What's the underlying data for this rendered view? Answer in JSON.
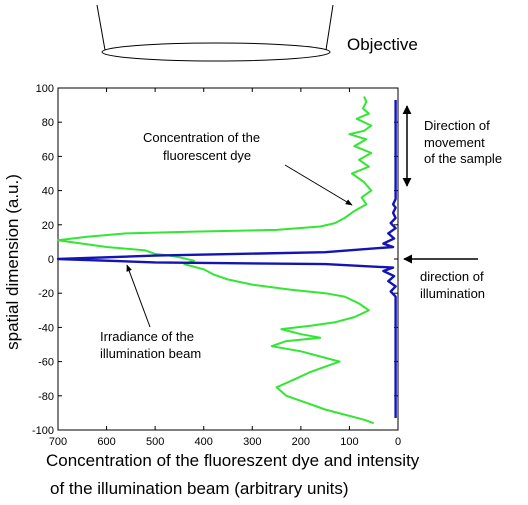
{
  "chart_data": {
    "type": "line",
    "xlabel_line1": "Concentration of the fluoreszent dye and intensity",
    "xlabel_line2": "of the illumination beam (arbitrary units)",
    "ylabel": "spatial dimension (a.u.)",
    "xlim": [
      700,
      0
    ],
    "ylim": [
      -100,
      100
    ],
    "x_ticks": [
      700,
      600,
      500,
      400,
      300,
      200,
      100,
      0
    ],
    "y_ticks": [
      100,
      80,
      60,
      40,
      20,
      0,
      -20,
      -40,
      -60,
      -80,
      -100
    ],
    "grid": false,
    "series": [
      {
        "color": "#33e633",
        "points": [
          [
            70,
            95
          ],
          [
            65,
            92
          ],
          [
            72,
            88
          ],
          [
            60,
            85
          ],
          [
            85,
            82
          ],
          [
            55,
            78
          ],
          [
            70,
            75
          ],
          [
            100,
            73
          ],
          [
            65,
            70
          ],
          [
            90,
            66
          ],
          [
            55,
            62
          ],
          [
            80,
            58
          ],
          [
            60,
            54
          ],
          [
            95,
            50
          ],
          [
            70,
            45
          ],
          [
            55,
            40
          ],
          [
            75,
            36
          ],
          [
            65,
            32
          ],
          [
            90,
            28
          ],
          [
            110,
            24
          ],
          [
            130,
            21
          ],
          [
            160,
            19
          ],
          [
            250,
            17
          ],
          [
            420,
            16
          ],
          [
            560,
            15
          ],
          [
            640,
            13
          ],
          [
            700,
            11
          ],
          [
            650,
            9
          ],
          [
            600,
            7
          ],
          [
            520,
            5
          ],
          [
            500,
            3
          ],
          [
            470,
            2
          ],
          [
            450,
            1
          ],
          [
            420,
            -1
          ],
          [
            440,
            -3
          ],
          [
            400,
            -6
          ],
          [
            380,
            -9
          ],
          [
            350,
            -12
          ],
          [
            300,
            -15
          ],
          [
            220,
            -18
          ],
          [
            150,
            -20
          ],
          [
            110,
            -22
          ],
          [
            80,
            -26
          ],
          [
            60,
            -30
          ],
          [
            90,
            -34
          ],
          [
            130,
            -37
          ],
          [
            180,
            -39
          ],
          [
            240,
            -41
          ],
          [
            200,
            -44
          ],
          [
            160,
            -46
          ],
          [
            230,
            -48
          ],
          [
            260,
            -51
          ],
          [
            200,
            -54
          ],
          [
            160,
            -57
          ],
          [
            120,
            -60
          ],
          [
            150,
            -63
          ],
          [
            180,
            -66
          ],
          [
            210,
            -70
          ],
          [
            250,
            -75
          ],
          [
            230,
            -80
          ],
          [
            190,
            -84
          ],
          [
            150,
            -88
          ],
          [
            110,
            -91
          ],
          [
            70,
            -94
          ],
          [
            50,
            -96
          ]
        ]
      },
      {
        "color": "#1414b4",
        "points": [
          [
            5,
            93
          ],
          [
            5,
            80
          ],
          [
            5,
            60
          ],
          [
            5,
            40
          ],
          [
            5,
            35
          ],
          [
            10,
            32
          ],
          [
            5,
            30
          ],
          [
            10,
            27
          ],
          [
            5,
            24
          ],
          [
            15,
            21
          ],
          [
            5,
            18
          ],
          [
            20,
            15
          ],
          [
            8,
            12
          ],
          [
            30,
            9
          ],
          [
            10,
            7
          ],
          [
            150,
            4
          ],
          [
            500,
            2
          ],
          [
            700,
            0
          ],
          [
            500,
            -2
          ],
          [
            150,
            -3
          ],
          [
            10,
            -5
          ],
          [
            30,
            -7
          ],
          [
            8,
            -10
          ],
          [
            20,
            -13
          ],
          [
            5,
            -16
          ],
          [
            15,
            -19
          ],
          [
            5,
            -22
          ],
          [
            5,
            -40
          ],
          [
            5,
            -60
          ],
          [
            5,
            -80
          ],
          [
            5,
            -93
          ]
        ]
      }
    ],
    "annotations": {
      "objective": "Objective",
      "dye_line1": "Concentration of the",
      "dye_line2": "fluorescent dye",
      "movement_line1": "Direction of",
      "movement_line2": "movement",
      "movement_line3": "of the sample",
      "illum_line1": "direction of",
      "illum_line2": "illumination",
      "irr_line1": "Irradiance of the",
      "irr_line2": "illumination beam"
    }
  }
}
